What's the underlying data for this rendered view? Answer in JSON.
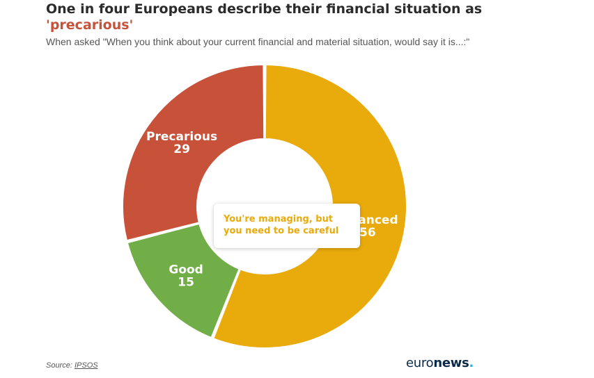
{
  "title": {
    "prefix": "One in four Europeans describe their financial situation as",
    "quote_open": "'",
    "highlight": "precarious",
    "quote_close": "'"
  },
  "subtitle": "When asked \"When you think about your current financial and material situation, would say it is...:\"",
  "tooltip": {
    "text": "You're managing, but you need to be careful",
    "color": "#e9ab0b"
  },
  "footer": {
    "source_label": "Source:",
    "source_name": "IPSOS"
  },
  "logo": {
    "part1": "euro",
    "part2": "news",
    "dot": "."
  },
  "colors": {
    "title_highlight": "#c8513a",
    "logo_dot": "#19b5e5"
  },
  "chart_data": {
    "type": "pie",
    "variant": "donut",
    "title": "One in four Europeans describe their financial situation as 'precarious'",
    "slices": [
      {
        "label": "Balanced",
        "value": 56,
        "color": "#e9ab0b"
      },
      {
        "label": "Good",
        "value": 15,
        "color": "#72ae48"
      },
      {
        "label": "Precarious",
        "value": 29,
        "color": "#c8513a"
      }
    ]
  }
}
